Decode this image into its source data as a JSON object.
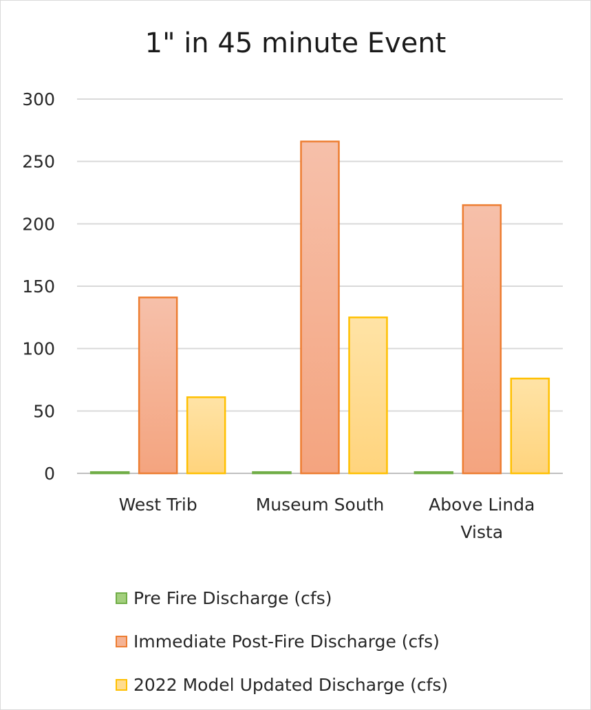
{
  "chart_data": {
    "type": "bar",
    "title": "1\" in 45 minute Event",
    "categories": [
      "West Trib",
      "Museum South",
      "Above Linda Vista"
    ],
    "category_lines": [
      [
        "West Trib"
      ],
      [
        "Museum South"
      ],
      [
        "Above Linda",
        "Vista"
      ]
    ],
    "series": [
      {
        "name": "Pre Fire Discharge (cfs)",
        "values": [
          1,
          1,
          1
        ],
        "fill_top": "#b3d78f",
        "fill_bottom": "#8cc063",
        "stroke": "#70ad47"
      },
      {
        "name": "Immediate Post-Fire Discharge (cfs)",
        "values": [
          141,
          266,
          215
        ],
        "fill_top": "#f6c0aa",
        "fill_bottom": "#f4a47f",
        "stroke": "#ed7d31"
      },
      {
        "name": "2022 Model Updated Discharge (cfs)",
        "values": [
          61,
          125,
          76
        ],
        "fill_top": "#ffe3a6",
        "fill_bottom": "#ffd47d",
        "stroke": "#ffc000"
      }
    ],
    "ylim": [
      0,
      300
    ],
    "yticks": [
      0,
      50,
      100,
      150,
      200,
      250,
      300
    ],
    "grid": true,
    "legend_position": "bottom"
  }
}
